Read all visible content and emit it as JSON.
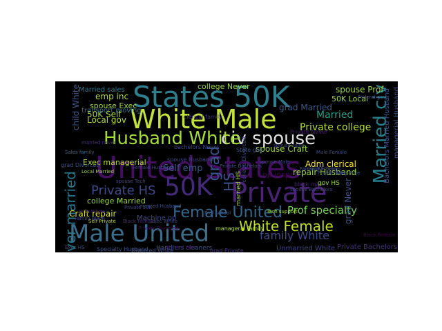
{
  "cloud": {
    "background": "#000000",
    "words": [
      {
        "text": "United States",
        "color": "#440f62"
      },
      {
        "text": "States 50K",
        "color": "#2d7f8e"
      },
      {
        "text": "White Male",
        "color": "#c3e13b"
      },
      {
        "text": "Male United",
        "color": "#3b6f8e"
      },
      {
        "text": "50K",
        "color": "#462a7a"
      },
      {
        "text": "HS",
        "color": "#3c4f8a"
      },
      {
        "text": "Private",
        "color": "#482273"
      },
      {
        "text": "Married civ",
        "color": "#27808e"
      },
      {
        "text": "civ spouse",
        "color": "#e0e0e0"
      },
      {
        "text": "Husband White",
        "color": "#a5db36"
      },
      {
        "text": "Female United",
        "color": "#31688e"
      },
      {
        "text": "White Female",
        "color": "#c2df23"
      },
      {
        "text": "Never married",
        "color": "#2a788e"
      },
      {
        "text": "Private HS",
        "color": "#3e4a89"
      },
      {
        "text": "family White",
        "color": "#3e4c8a"
      },
      {
        "text": "grad",
        "color": "#39568c"
      },
      {
        "text": "Prof specialty",
        "color": "#75d054"
      },
      {
        "text": "Private college",
        "color": "#b5de2b"
      },
      {
        "text": "Married",
        "color": "#1f9e89"
      },
      {
        "text": "Bachelors Married Husband",
        "color": "#3a548c"
      },
      {
        "text": "managerial Husband",
        "color": "#3b528b"
      },
      {
        "text": "spouse Prof",
        "color": "#9fda3a"
      },
      {
        "text": "50K Local",
        "color": "#9dd93b"
      },
      {
        "text": "Local gov",
        "color": "#b2dd2d"
      },
      {
        "text": "50K Self",
        "color": "#a5db36"
      },
      {
        "text": "emp inc",
        "color": "#b5de2b"
      },
      {
        "text": "spouse Exec",
        "color": "#a0da39"
      },
      {
        "text": "Exec managerial",
        "color": "#bade28"
      },
      {
        "text": "Self emp",
        "color": "#38598c"
      },
      {
        "text": "spouse Craft",
        "color": "#9bd93c"
      },
      {
        "text": "Adm clerical",
        "color": "#fde725"
      },
      {
        "text": "repair Husband",
        "color": "#a0da39"
      },
      {
        "text": "Craft repair",
        "color": "#d8e219"
      },
      {
        "text": "college Married",
        "color": "#9bd93c"
      },
      {
        "text": "Machine op",
        "color": "#3e4989"
      },
      {
        "text": "Private Bachelors",
        "color": "#45337d"
      },
      {
        "text": "Unmarried White",
        "color": "#3f4788"
      },
      {
        "text": "college Never",
        "color": "#9dd93b"
      },
      {
        "text": "grad Married",
        "color": "#38588c"
      },
      {
        "text": "grad Never",
        "color": "#3c508b"
      },
      {
        "text": "child White",
        "color": "#39558c"
      },
      {
        "text": "op inspct",
        "color": "#440154"
      },
      {
        "text": "spouse Husband",
        "color": "#3f4889"
      },
      {
        "text": "Handlers cleaners",
        "color": "#3b528b"
      },
      {
        "text": "transport moving",
        "color": "#2d708e"
      },
      {
        "text": "Married sales",
        "color": "#2a788e"
      },
      {
        "text": "grad Divorced",
        "color": "#39568c"
      },
      {
        "text": "clerical family",
        "color": "#453581"
      },
      {
        "text": "married HS",
        "color": "#9dd93b"
      },
      {
        "text": "Private Never",
        "color": "#481d6f"
      },
      {
        "text": "bachelors Never",
        "color": "#3f4889"
      },
      {
        "text": "college Divorced",
        "color": "#404588"
      },
      {
        "text": "State gov",
        "color": "#38598c"
      },
      {
        "text": "black male",
        "color": "#482475"
      },
      {
        "text": "Specialty Husband",
        "color": "#3b528b"
      },
      {
        "text": "grad Private",
        "color": "#46327e"
      },
      {
        "text": "Divorced White",
        "color": "#3c4f8a"
      },
      {
        "text": "Sales family",
        "color": "#31688e"
      },
      {
        "text": "spouse sales",
        "color": "#3e4989"
      },
      {
        "text": "married never",
        "color": "#46307e"
      },
      {
        "text": "Farming fishing",
        "color": "#3b528b"
      },
      {
        "text": "gov HS",
        "color": "#9dd93b"
      },
      {
        "text": "Private Bachelors",
        "color": "#3e4989"
      },
      {
        "text": "spouse Bachelors",
        "color": "#414487"
      },
      {
        "text": "Female Husband",
        "color": "#3f4788"
      },
      {
        "text": "Exec HS",
        "color": "#3b528b"
      },
      {
        "text": "manageral family",
        "color": "#b5de2b"
      },
      {
        "text": "Self Private",
        "color": "#c2df23"
      },
      {
        "text": "gov Bachelors",
        "color": "#3e4a89"
      },
      {
        "text": "Exec Male",
        "color": "#3b528b"
      },
      {
        "text": "Private 50K",
        "color": "#414487"
      },
      {
        "text": "married Husband",
        "color": "#3d4e8a"
      },
      {
        "text": "Black Female",
        "color": "#472d7b"
      },
      {
        "text": "Tech support",
        "color": "#a8db34"
      },
      {
        "text": "Male Female",
        "color": "#3d4d8a"
      },
      {
        "text": "spouse Tech",
        "color": "#3e4989"
      },
      {
        "text": "Federal gov",
        "color": "#3b528b"
      },
      {
        "text": "Private Divorced",
        "color": "#440154"
      },
      {
        "text": "Exec White",
        "color": "#3f4889"
      },
      {
        "text": "Married Adm",
        "color": "#471365"
      },
      {
        "text": "Wife White",
        "color": "#482173"
      },
      {
        "text": "Family Black",
        "color": "#3e4989"
      },
      {
        "text": "Private Adm",
        "color": "#3b528b"
      },
      {
        "text": "spouse Male",
        "color": "#3f4788"
      },
      {
        "text": "Local Married",
        "color": "#a5db36"
      },
      {
        "text": "Prof school",
        "color": "#3a538b"
      },
      {
        "text": "Black Female",
        "color": "#440154"
      }
    ]
  }
}
